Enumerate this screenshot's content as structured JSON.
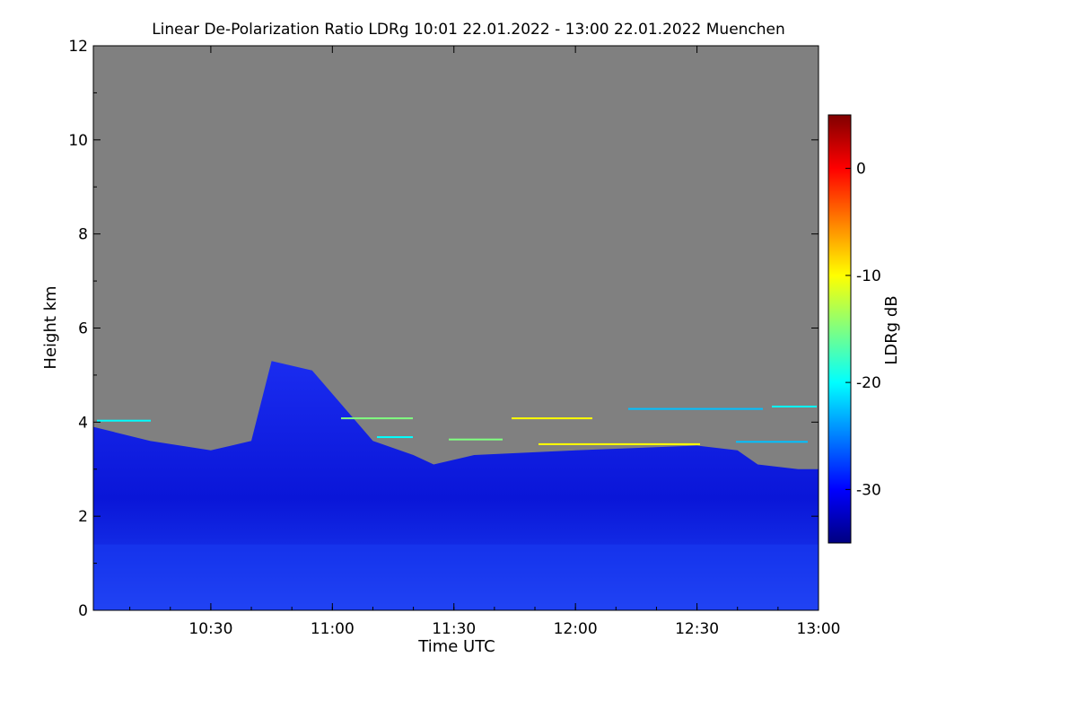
{
  "chart_data": {
    "type": "heatmap",
    "title": "Linear De-Polarization Ratio LDRg   10:01 22.01.2022 - 13:00 22.01.2022 Muenchen",
    "xlabel": "Time UTC",
    "ylabel": "Height km",
    "x_range": [
      "10:01",
      "13:00"
    ],
    "x_ticks": [
      "10:30",
      "11:00",
      "11:30",
      "12:00",
      "12:30",
      "13:00"
    ],
    "ylim": [
      0,
      12
    ],
    "y_ticks": [
      0,
      2,
      4,
      6,
      8,
      10,
      12
    ],
    "colorbar": {
      "label": "LDRg dB",
      "range": [
        -35,
        5
      ],
      "ticks": [
        0,
        -10,
        -20,
        -30
      ],
      "colormap": [
        "#000080",
        "#0000ff",
        "#0080ff",
        "#00ffff",
        "#80ff80",
        "#ffff00",
        "#ff8000",
        "#ff0000",
        "#800000"
      ]
    },
    "no_signal_color": "#808080",
    "cloud_top_km": [
      {
        "time": "10:01",
        "height": 3.9
      },
      {
        "time": "10:15",
        "height": 3.6
      },
      {
        "time": "10:30",
        "height": 3.4
      },
      {
        "time": "10:40",
        "height": 3.6
      },
      {
        "time": "10:45",
        "height": 5.3
      },
      {
        "time": "10:55",
        "height": 5.1
      },
      {
        "time": "11:02",
        "height": 4.4
      },
      {
        "time": "11:10",
        "height": 3.6
      },
      {
        "time": "11:20",
        "height": 3.3
      },
      {
        "time": "11:25",
        "height": 3.1
      },
      {
        "time": "11:35",
        "height": 3.3
      },
      {
        "time": "12:00",
        "height": 3.4
      },
      {
        "time": "12:30",
        "height": 3.5
      },
      {
        "time": "12:40",
        "height": 3.4
      },
      {
        "time": "12:45",
        "height": 3.1
      },
      {
        "time": "12:55",
        "height": 3.0
      },
      {
        "time": "13:00",
        "height": 3.0
      }
    ],
    "typical_ldr_db": -30,
    "grid": false
  }
}
